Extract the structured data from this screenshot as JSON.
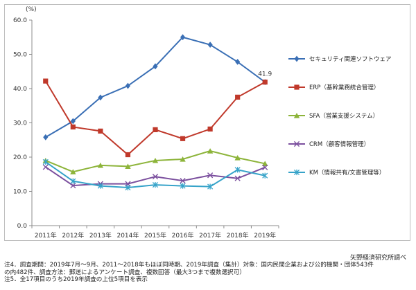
{
  "chart_data": {
    "type": "line",
    "categories": [
      "2011年",
      "2012年",
      "2013年",
      "2014年",
      "2015年",
      "2016年",
      "2017年",
      "2018年",
      "2019年"
    ],
    "ylim": [
      0,
      60
    ],
    "yticks": [
      "0.0",
      "10.0",
      "20.0",
      "30.0",
      "40.0",
      "50.0",
      "60.0"
    ],
    "yunit": "(%)",
    "grid": false,
    "legend_position": "right",
    "series": [
      {
        "name": "セキュリティ関連ソフトウェア",
        "color": "#3a6fb5",
        "marker": "diamond",
        "values": [
          25.8,
          30.5,
          37.4,
          40.8,
          46.5,
          55.0,
          52.8,
          47.8,
          41.9
        ]
      },
      {
        "name": "ERP（基幹業務統合管理）",
        "color": "#c0392b",
        "marker": "square",
        "values": [
          42.2,
          28.8,
          27.6,
          20.7,
          28.0,
          25.4,
          28.2,
          37.5,
          41.9
        ]
      },
      {
        "name": "SFA（営業支援システム）",
        "color": "#8db43a",
        "marker": "triangle",
        "values": [
          19.0,
          15.7,
          17.6,
          17.3,
          19.0,
          19.4,
          21.8,
          19.8,
          18.1
        ]
      },
      {
        "name": "CRM（顧客情報管理）",
        "color": "#7b4f9e",
        "marker": "x",
        "values": [
          17.1,
          11.7,
          12.2,
          12.2,
          14.3,
          13.1,
          14.7,
          13.8,
          17.0
        ]
      },
      {
        "name": "KM（情報共有/文書管理等）",
        "color": "#36a3c9",
        "marker": "star",
        "values": [
          18.6,
          13.0,
          11.6,
          11.1,
          11.9,
          11.6,
          11.4,
          16.3,
          14.6
        ]
      }
    ],
    "annotations": [
      {
        "text": "41.9"
      }
    ]
  },
  "source": "矢野経済研究所調べ",
  "notes": [
    "注4．調査期間：2019年7月〜9月、2011〜2018年もほぼ同時期、2019年調査（集計）対象：国内民間企業および公的機関・団体543件",
    "の内482件、調査方法：郵送によるアンケート調査、複数回答（最大3つまで複数選択可）",
    "注5．全17項目のうち2019年調査の上位5項目を表示"
  ]
}
